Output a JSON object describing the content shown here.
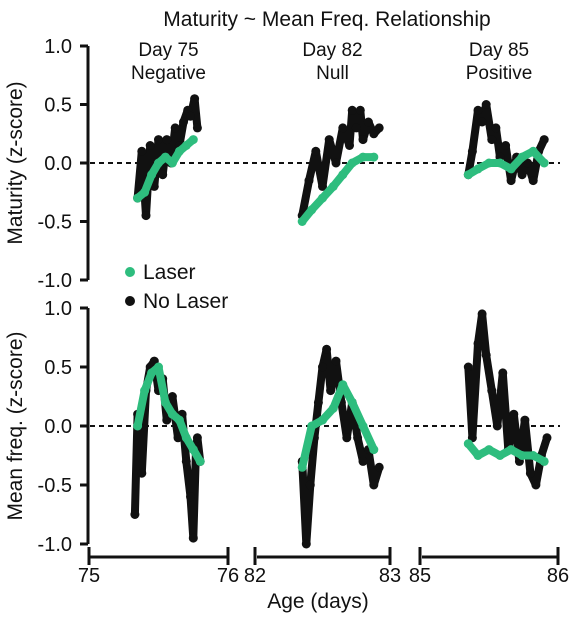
{
  "colors": {
    "laser": "#2ebd7e",
    "no_laser": "#111111",
    "axis": "#111111"
  },
  "chart_data": {
    "type": "line",
    "title": "Maturity ~ Mean Freq. Relationship",
    "xlabel": "Age (days)",
    "legend": {
      "placement": "middle-left",
      "entries": [
        "Laser",
        "No Laser"
      ]
    },
    "rows": [
      {
        "ylabel": "Maturity (z-score)",
        "ylim": [
          -1.0,
          1.0
        ],
        "yticks": [
          "1.0",
          "0.5",
          "0.0",
          "-0.5",
          "-1.0"
        ],
        "yvalues": [
          1.0,
          0.5,
          0.0,
          -0.5,
          -1.0
        ],
        "zero_line": 0
      },
      {
        "ylabel": "Mean freq. (z-score)",
        "ylim": [
          -1.0,
          1.0
        ],
        "yticks": [
          "1.0",
          "0.5",
          "0.0",
          "-0.5",
          "-1.0"
        ],
        "yvalues": [
          1.0,
          0.5,
          0.0,
          -0.5,
          -1.0
        ],
        "zero_line": 0
      }
    ],
    "columns": [
      {
        "label_day": "Day 75",
        "label_sign": "Negative",
        "xlim": [
          75,
          76
        ],
        "xticks": [
          "75",
          "76"
        ]
      },
      {
        "label_day": "Day 82",
        "label_sign": "Null",
        "xlim": [
          82,
          83
        ],
        "xticks": [
          "82",
          "83"
        ]
      },
      {
        "label_day": "Day 85",
        "label_sign": "Positive",
        "xlim": [
          85,
          86
        ],
        "xticks": [
          "85",
          "86"
        ]
      }
    ],
    "series": [
      {
        "name": "No Laser",
        "panels": [
          {
            "row": 0,
            "col": 0,
            "x": [
              75.35,
              75.38,
              75.41,
              75.44,
              75.47,
              75.5,
              75.53,
              75.56,
              75.59,
              75.62,
              75.65,
              75.68,
              75.71,
              75.73,
              75.76,
              75.78
            ],
            "y": [
              -0.3,
              0.1,
              -0.45,
              0.15,
              -0.2,
              0.2,
              -0.1,
              0.2,
              0.0,
              0.3,
              0.15,
              0.35,
              0.45,
              0.4,
              0.55,
              0.3
            ]
          },
          {
            "row": 1,
            "col": 0,
            "x": [
              75.33,
              75.35,
              75.38,
              75.41,
              75.44,
              75.47,
              75.5,
              75.53,
              75.56,
              75.6,
              75.64,
              75.67,
              75.7,
              75.73,
              75.75,
              75.77,
              75.78,
              75.8
            ],
            "y": [
              -0.75,
              0.1,
              -0.4,
              0.3,
              0.5,
              0.55,
              0.3,
              0.4,
              0.05,
              0.25,
              -0.1,
              0.1,
              -0.3,
              -0.6,
              -0.95,
              -0.2,
              -0.1,
              -0.3
            ]
          },
          {
            "row": 0,
            "col": 1,
            "x": [
              82.35,
              82.4,
              82.45,
              82.5,
              82.55,
              82.6,
              82.65,
              82.7,
              82.72,
              82.75,
              82.78,
              82.8,
              82.84,
              82.88,
              82.92
            ],
            "y": [
              -0.45,
              -0.15,
              0.1,
              -0.2,
              0.2,
              0.0,
              0.3,
              0.15,
              0.45,
              0.3,
              0.45,
              0.2,
              0.35,
              0.25,
              0.3
            ]
          },
          {
            "row": 1,
            "col": 1,
            "x": [
              82.35,
              82.38,
              82.41,
              82.44,
              82.47,
              82.5,
              82.53,
              82.56,
              82.6,
              82.64,
              82.68,
              82.72,
              82.76,
              82.8,
              82.84,
              82.88,
              82.92
            ],
            "y": [
              -0.3,
              -1.0,
              -0.5,
              -0.1,
              0.2,
              0.5,
              0.65,
              0.3,
              0.55,
              0.2,
              -0.1,
              0.2,
              -0.1,
              -0.3,
              -0.2,
              -0.5,
              -0.35
            ]
          },
          {
            "row": 0,
            "col": 2,
            "x": [
              85.35,
              85.38,
              85.42,
              85.45,
              85.48,
              85.52,
              85.55,
              85.58,
              85.62,
              85.66,
              85.7,
              85.74,
              85.78,
              85.82,
              85.86,
              85.9
            ],
            "y": [
              -0.1,
              0.1,
              0.45,
              0.35,
              0.5,
              0.2,
              0.3,
              0.05,
              0.15,
              -0.15,
              0.05,
              -0.1,
              0.0,
              -0.15,
              0.1,
              0.2
            ]
          },
          {
            "row": 1,
            "col": 2,
            "x": [
              85.35,
              85.38,
              85.42,
              85.45,
              85.48,
              85.52,
              85.56,
              85.6,
              85.64,
              85.68,
              85.72,
              85.76,
              85.8,
              85.84,
              85.88,
              85.92
            ],
            "y": [
              0.5,
              -0.1,
              0.7,
              0.95,
              0.6,
              0.3,
              0.0,
              0.45,
              -0.2,
              0.1,
              -0.3,
              0.05,
              -0.4,
              -0.5,
              -0.25,
              -0.1
            ]
          }
        ]
      },
      {
        "name": "Laser",
        "panels": [
          {
            "row": 0,
            "col": 0,
            "x": [
              75.35,
              75.4,
              75.45,
              75.5,
              75.55,
              75.6,
              75.65,
              75.7,
              75.75
            ],
            "y": [
              -0.3,
              -0.25,
              -0.1,
              0.0,
              0.05,
              0.0,
              0.1,
              0.15,
              0.2
            ]
          },
          {
            "row": 1,
            "col": 0,
            "x": [
              75.35,
              75.4,
              75.45,
              75.5,
              75.55,
              75.6,
              75.65,
              75.7,
              75.75,
              75.8
            ],
            "y": [
              0.0,
              0.3,
              0.45,
              0.5,
              0.2,
              0.1,
              0.05,
              -0.1,
              -0.2,
              -0.3
            ]
          },
          {
            "row": 0,
            "col": 1,
            "x": [
              82.35,
              82.42,
              82.5,
              82.58,
              82.65,
              82.72,
              82.8,
              82.88
            ],
            "y": [
              -0.5,
              -0.4,
              -0.3,
              -0.2,
              -0.1,
              0.0,
              0.05,
              0.05
            ]
          },
          {
            "row": 1,
            "col": 1,
            "x": [
              82.35,
              82.42,
              82.5,
              82.58,
              82.65,
              82.72,
              82.8,
              82.88
            ],
            "y": [
              -0.35,
              0.0,
              0.05,
              0.15,
              0.35,
              0.2,
              0.0,
              -0.2
            ]
          },
          {
            "row": 0,
            "col": 2,
            "x": [
              85.35,
              85.42,
              85.5,
              85.58,
              85.66,
              85.74,
              85.82,
              85.9
            ],
            "y": [
              -0.1,
              -0.05,
              0.0,
              0.0,
              -0.05,
              0.05,
              0.1,
              0.0
            ]
          },
          {
            "row": 1,
            "col": 2,
            "x": [
              85.35,
              85.42,
              85.5,
              85.58,
              85.66,
              85.74,
              85.82,
              85.9
            ],
            "y": [
              -0.15,
              -0.25,
              -0.2,
              -0.25,
              -0.2,
              -0.25,
              -0.25,
              -0.3
            ]
          }
        ]
      }
    ]
  }
}
